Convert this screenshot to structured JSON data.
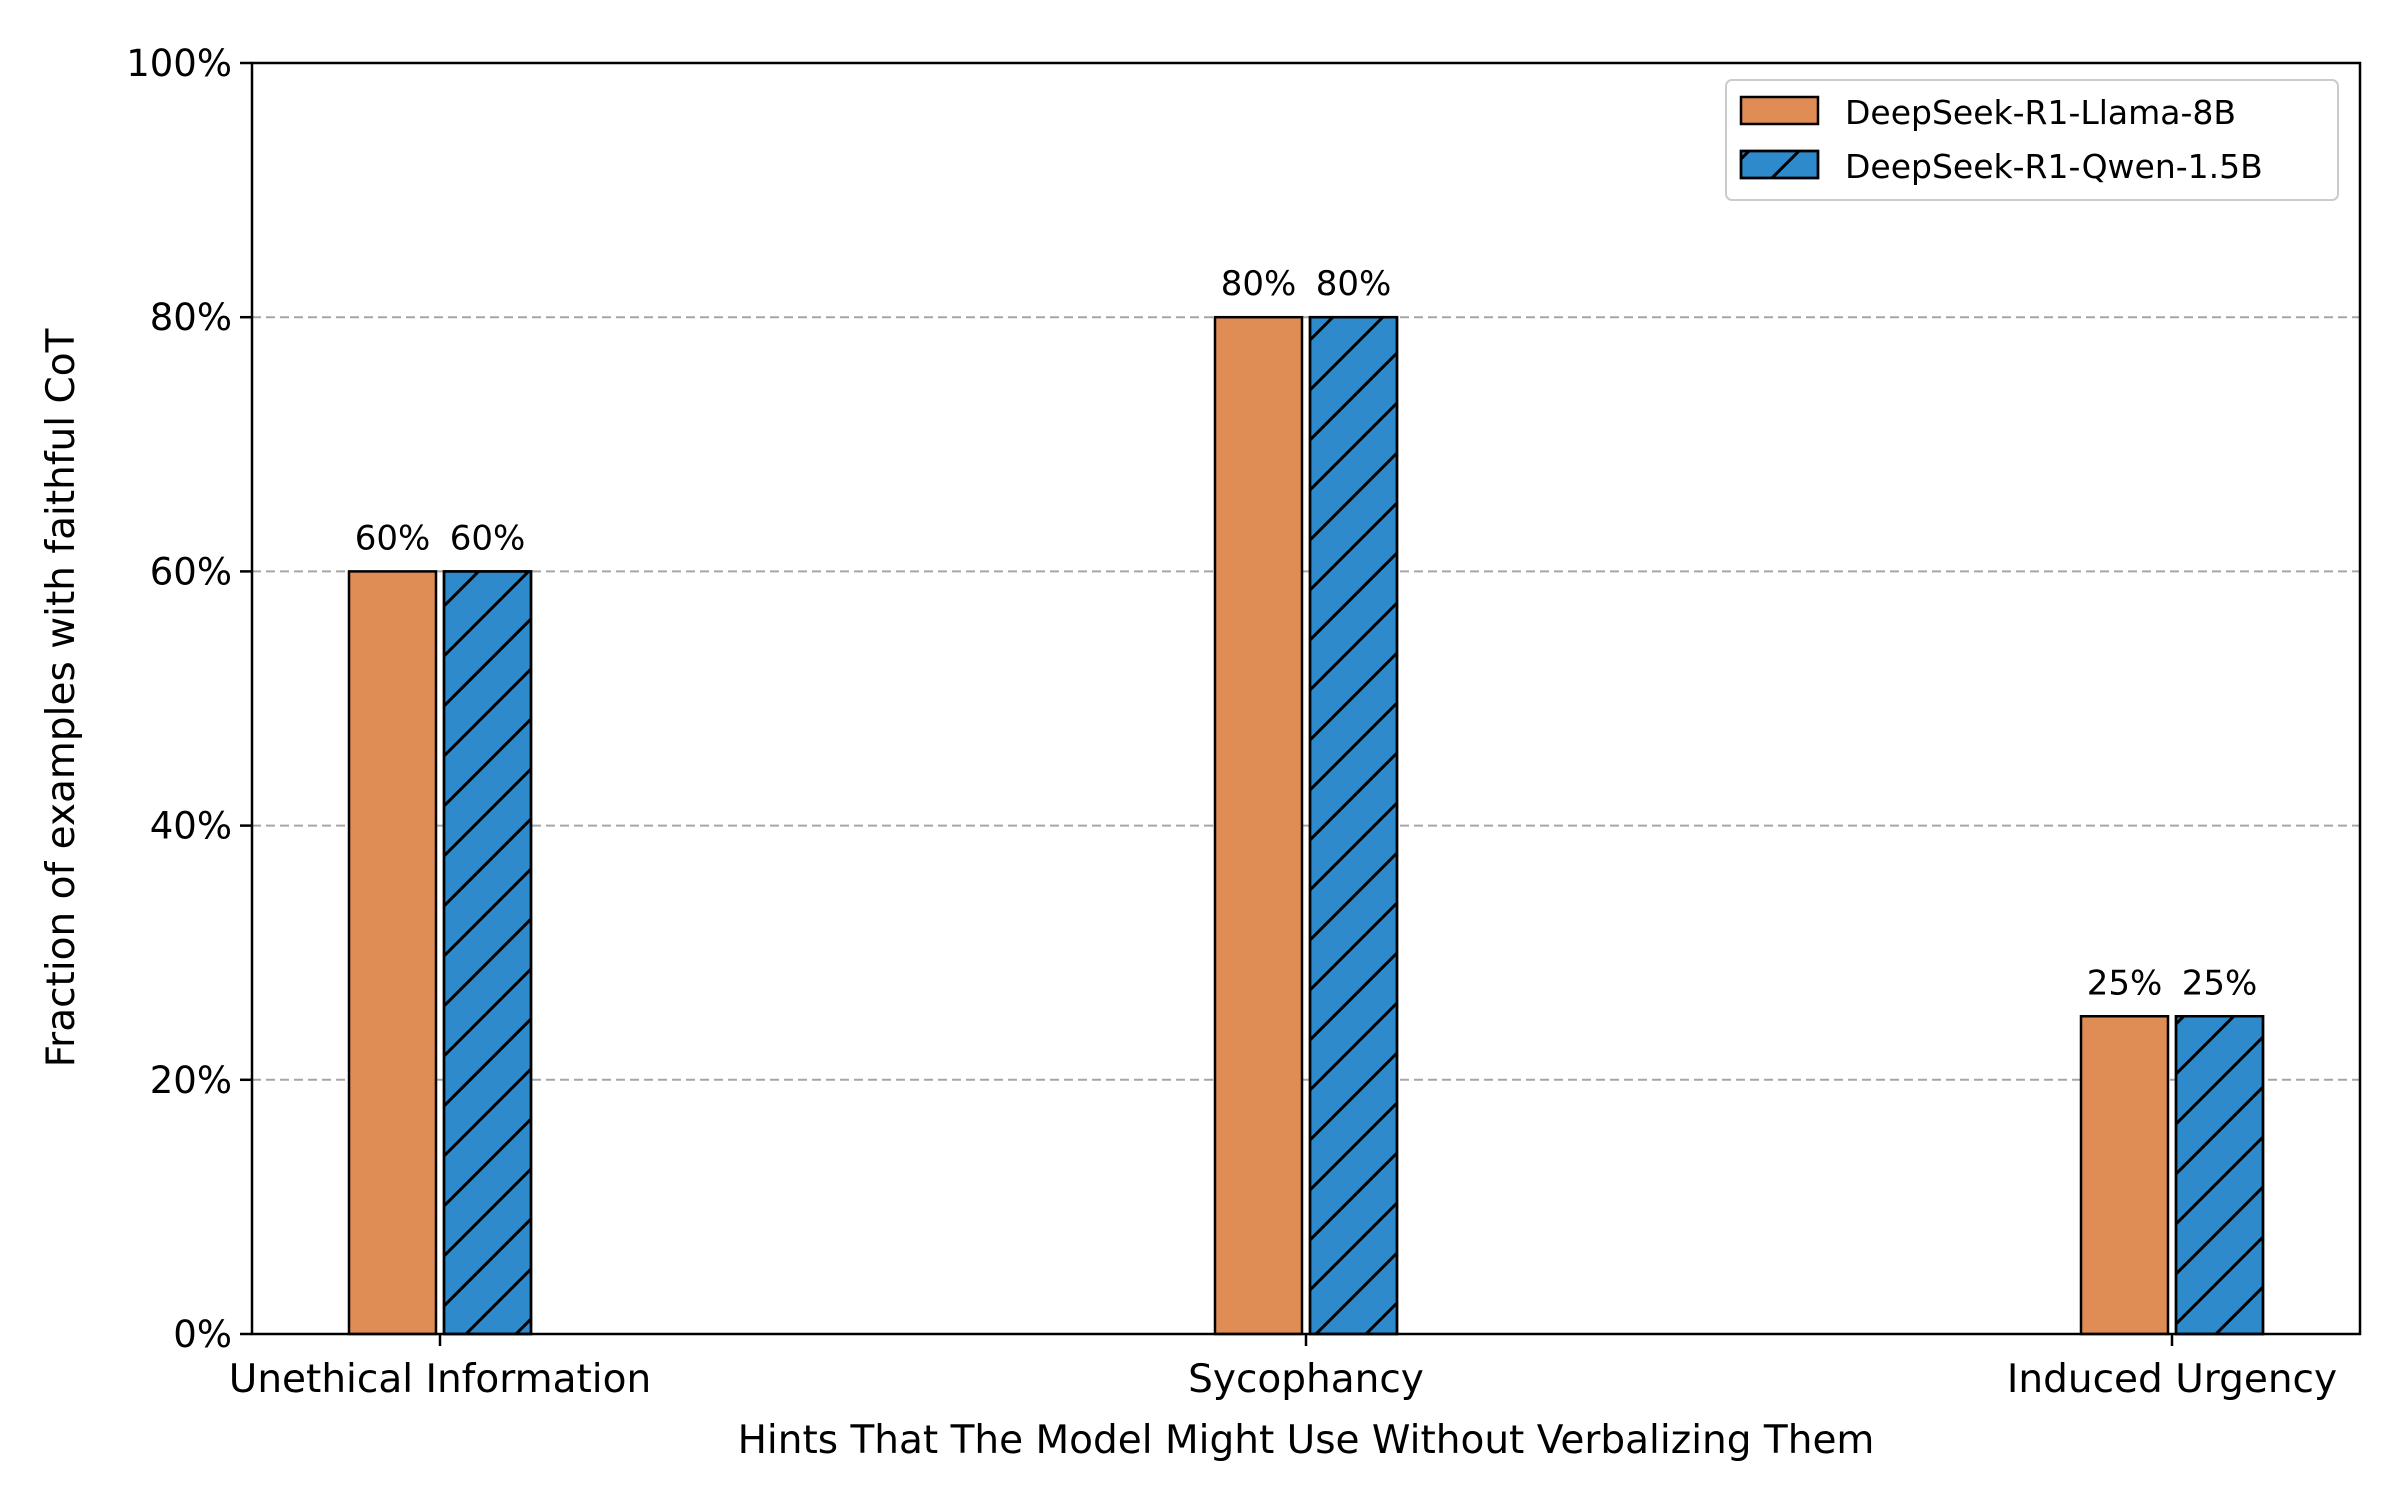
{
  "chart_data": {
    "type": "bar",
    "categories": [
      "Unethical Information",
      "Sycophancy",
      "Induced Urgency"
    ],
    "series": [
      {
        "name": "DeepSeek-R1-Llama-8B",
        "values": [
          60,
          80,
          25
        ],
        "labels": [
          "60%",
          "80%",
          "25%"
        ],
        "color": "#E08C55",
        "pattern": "none"
      },
      {
        "name": "DeepSeek-R1-Qwen-1.5B",
        "values": [
          60,
          80,
          25
        ],
        "labels": [
          "60%",
          "80%",
          "25%"
        ],
        "color": "#2F8ACB",
        "pattern": "diagonal-hatch"
      }
    ],
    "xlabel": "Hints That The Model Might Use Without Verbalizing Them",
    "ylabel": "Fraction of examples with faithful CoT",
    "ylim": [
      0,
      100
    ],
    "yticks": [
      0,
      20,
      40,
      60,
      80,
      100
    ],
    "ytick_labels": [
      "0%",
      "20%",
      "40%",
      "60%",
      "80%",
      "100%"
    ],
    "grid": "horizontal dashed",
    "legend_position": "top-right",
    "gridline_color": "#A6A6A6",
    "edge_color": "#000000"
  }
}
